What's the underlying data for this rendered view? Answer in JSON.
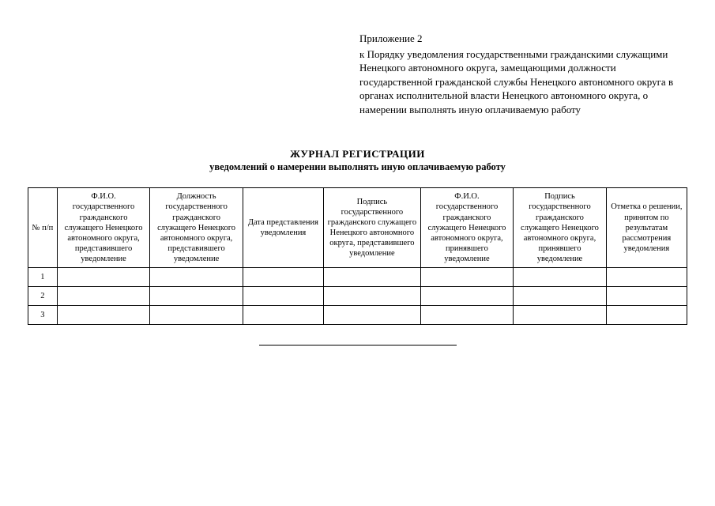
{
  "appendix": {
    "title": "Приложение 2",
    "text": "к Порядку уведомления государственными гражданскими служащими Ненецкого автономного округа, замещающими должности государственной гражданской службы Ненецкого автономного округа в органах исполнительной власти Ненецкого автономного округа, о намерении выполнять иную оплачиваемую работу"
  },
  "heading": {
    "line1": "ЖУРНАЛ РЕГИСТРАЦИИ",
    "line2": "уведомлений о намерении выполнять иную оплачиваемую работу"
  },
  "table": {
    "columns": [
      "№ п/п",
      "Ф.И.О. государственного гражданского служащего Ненецкого автономного округа, представившего уведомление",
      "Должность государственного гражданского служащего Ненецкого автономного округа, представившего уведомление",
      "Дата представления уведомления",
      "Подпись государственного гражданского служащего Ненецкого автономного округа, представившего уведомление",
      "Ф.И.О. государственного гражданского служащего Ненецкого автономного округа, принявшего уведомление",
      "Подпись государственного гражданского служащего Ненецкого автономного округа, принявшего уведомление",
      "Отметка о решении, принятом по результатам рассмотрения уведомления"
    ],
    "rows": [
      [
        "1",
        "",
        "",
        "",
        "",
        "",
        "",
        ""
      ],
      [
        "2",
        "",
        "",
        "",
        "",
        "",
        "",
        ""
      ],
      [
        "3",
        "",
        "",
        "",
        "",
        "",
        "",
        ""
      ]
    ],
    "col_classes": [
      "col-num",
      "col1",
      "col2",
      "col3",
      "col4",
      "col5",
      "col6",
      "col7"
    ]
  },
  "styling": {
    "background_color": "#ffffff",
    "border_color": "#000000",
    "text_color": "#000000",
    "body_font_family": "Times New Roman",
    "appendix_fontsize": 13,
    "title_fontsize": 13,
    "cell_fontsize": 10.5
  }
}
